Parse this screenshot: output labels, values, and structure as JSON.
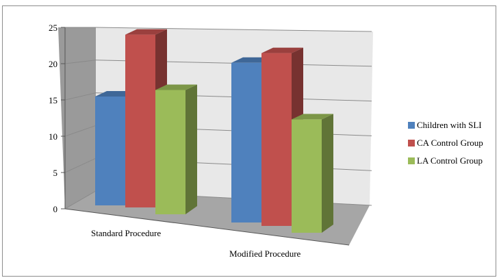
{
  "chart_data": {
    "type": "bar",
    "style": "3d-clustered-column",
    "title": "",
    "xlabel": "",
    "ylabel": "",
    "categories": [
      "Standard Procedure",
      "Modified Procedure"
    ],
    "series": [
      {
        "name": "Children with SLI",
        "color": "#4f81bd",
        "values": [
          15,
          22
        ]
      },
      {
        "name": "CA Control Group",
        "color": "#c0504d",
        "values": [
          24,
          24
        ]
      },
      {
        "name": "LA Control Group",
        "color": "#9bbb59",
        "values": [
          17.5,
          16
        ]
      }
    ],
    "ylim": [
      0,
      25
    ],
    "yticks": [
      "0",
      "5",
      "10",
      "15",
      "20",
      "25"
    ],
    "grid": true,
    "legend_position": "right"
  },
  "legend": {
    "items": [
      {
        "label": "Children with SLI",
        "color": "#4f81bd"
      },
      {
        "label": "CA Control Group",
        "color": "#c0504d"
      },
      {
        "label": "LA Control Group",
        "color": "#9bbb59"
      }
    ]
  }
}
